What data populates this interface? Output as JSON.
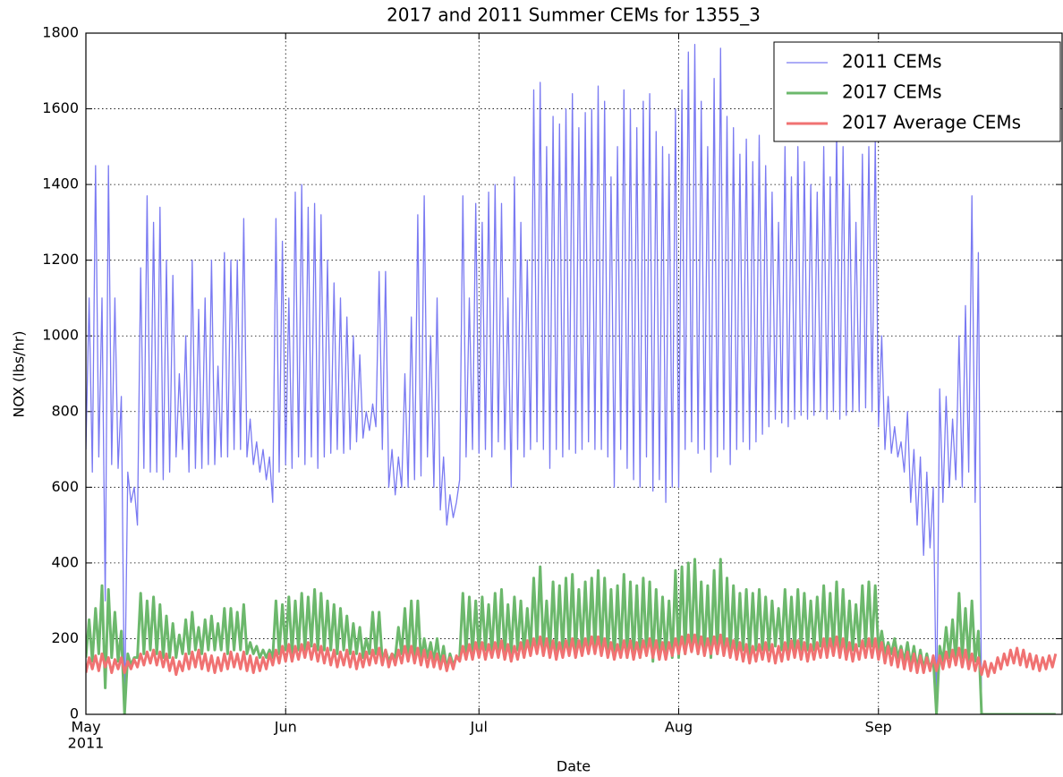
{
  "chart_data": {
    "type": "line",
    "title": "2017 and 2011 Summer CEMs for 1355_3",
    "xlabel": "Date",
    "ylabel": "NOX (lbs/hr)",
    "xtick_year": "2011",
    "xlim": [
      0,
      151.5
    ],
    "ylim": [
      0,
      1800
    ],
    "xticks": [
      {
        "value": 0,
        "label": "May"
      },
      {
        "value": 31,
        "label": "Jun"
      },
      {
        "value": 61,
        "label": "Jul"
      },
      {
        "value": 92,
        "label": "Aug"
      },
      {
        "value": 123,
        "label": "Sep"
      }
    ],
    "yticks": [
      0,
      200,
      400,
      600,
      800,
      1000,
      1200,
      1400,
      1600,
      1800
    ],
    "grid": true,
    "legend": "upper right",
    "x": [
      0,
      0.5,
      1,
      1.5,
      2,
      2.5,
      3,
      3.5,
      4,
      4.5,
      5,
      5.5,
      6,
      6.5,
      7,
      7.5,
      8,
      8.5,
      9,
      9.5,
      10,
      10.5,
      11,
      11.5,
      12,
      12.5,
      13,
      13.5,
      14,
      14.5,
      15,
      15.5,
      16,
      16.5,
      17,
      17.5,
      18,
      18.5,
      19,
      19.5,
      20,
      20.5,
      21,
      21.5,
      22,
      22.5,
      23,
      23.5,
      24,
      24.5,
      25,
      25.5,
      26,
      26.5,
      27,
      27.5,
      28,
      28.5,
      29,
      29.5,
      30,
      30.5,
      31,
      31.5,
      32,
      32.5,
      33,
      33.5,
      34,
      34.5,
      35,
      35.5,
      36,
      36.5,
      37,
      37.5,
      38,
      38.5,
      39,
      39.5,
      40,
      40.5,
      41,
      41.5,
      42,
      42.5,
      43,
      43.5,
      44,
      44.5,
      45,
      45.5,
      46,
      46.5,
      47,
      47.5,
      48,
      48.5,
      49,
      49.5,
      50,
      50.5,
      51,
      51.5,
      52,
      52.5,
      53,
      53.5,
      54,
      54.5,
      55,
      55.5,
      56,
      56.5,
      57,
      57.5,
      58,
      58.5,
      59,
      59.5,
      60,
      60.5,
      61,
      61.5,
      62,
      62.5,
      63,
      63.5,
      64,
      64.5,
      65,
      65.5,
      66,
      66.5,
      67,
      67.5,
      68,
      68.5,
      69,
      69.5,
      70,
      70.5,
      71,
      71.5,
      72,
      72.5,
      73,
      73.5,
      74,
      74.5,
      75,
      75.5,
      76,
      76.5,
      77,
      77.5,
      78,
      78.5,
      79,
      79.5,
      80,
      80.5,
      81,
      81.5,
      82,
      82.5,
      83,
      83.5,
      84,
      84.5,
      85,
      85.5,
      86,
      86.5,
      87,
      87.5,
      88,
      88.5,
      89,
      89.5,
      90,
      90.5,
      91,
      91.5,
      92,
      92.5,
      93,
      93.5,
      94,
      94.5,
      95,
      95.5,
      96,
      96.5,
      97,
      97.5,
      98,
      98.5,
      99,
      99.5,
      100,
      100.5,
      101,
      101.5,
      102,
      102.5,
      103,
      103.5,
      104,
      104.5,
      105,
      105.5,
      106,
      106.5,
      107,
      107.5,
      108,
      108.5,
      109,
      109.5,
      110,
      110.5,
      111,
      111.5,
      112,
      112.5,
      113,
      113.5,
      114,
      114.5,
      115,
      115.5,
      116,
      116.5,
      117,
      117.5,
      118,
      118.5,
      119,
      119.5,
      120,
      120.5,
      121,
      121.5,
      122,
      122.5,
      123,
      123.5,
      124,
      124.5,
      125,
      125.5,
      126,
      126.5,
      127,
      127.5,
      128,
      128.5,
      129,
      129.5,
      130,
      130.5,
      131,
      131.5,
      132,
      132.5,
      133,
      133.5,
      134,
      134.5,
      135,
      135.5,
      136,
      136.5,
      137,
      137.5,
      138,
      138.5,
      139,
      139.5,
      140,
      140.5,
      141,
      141.5,
      142,
      142.5,
      143,
      143.5,
      144,
      144.5,
      145,
      145.5,
      146,
      146.5,
      147,
      147.5,
      148,
      148.5,
      149,
      149.5,
      150,
      150.5
    ],
    "series": [
      {
        "name": "2011 CEMs",
        "color": "#7a7af2",
        "width": 1.3,
        "values": [
          700,
          1100,
          640,
          1450,
          680,
          1100,
          300,
          1450,
          660,
          1100,
          650,
          840,
          0,
          640,
          560,
          600,
          500,
          1180,
          650,
          1370,
          640,
          1300,
          640,
          1340,
          620,
          1200,
          640,
          1160,
          680,
          900,
          700,
          1000,
          640,
          1200,
          650,
          1070,
          650,
          1100,
          660,
          1200,
          660,
          920,
          680,
          1220,
          680,
          1200,
          700,
          1200,
          700,
          1310,
          680,
          780,
          660,
          720,
          640,
          700,
          620,
          680,
          560,
          1310,
          640,
          1250,
          660,
          1100,
          650,
          1380,
          680,
          1400,
          660,
          1340,
          680,
          1350,
          650,
          1320,
          680,
          1200,
          690,
          1140,
          700,
          1100,
          690,
          1050,
          700,
          1000,
          720,
          950,
          730,
          800,
          750,
          820,
          760,
          1170,
          700,
          1170,
          600,
          700,
          580,
          680,
          600,
          900,
          600,
          1050,
          620,
          1320,
          630,
          1370,
          680,
          1000,
          600,
          1100,
          540,
          680,
          500,
          580,
          520,
          560,
          620,
          1370,
          680,
          1100,
          700,
          1350,
          690,
          1300,
          700,
          1380,
          680,
          1400,
          720,
          1350,
          700,
          1100,
          600,
          1420,
          700,
          1300,
          680,
          1200,
          700,
          1650,
          720,
          1670,
          700,
          1500,
          650,
          1580,
          700,
          1560,
          680,
          1600,
          700,
          1640,
          690,
          1550,
          700,
          1590,
          720,
          1600,
          700,
          1660,
          700,
          1620,
          680,
          1420,
          600,
          1500,
          700,
          1650,
          650,
          1600,
          620,
          1550,
          600,
          1620,
          680,
          1640,
          590,
          1540,
          620,
          1500,
          560,
          1480,
          600,
          1600,
          600,
          1650,
          700,
          1750,
          720,
          1770,
          690,
          1620,
          700,
          1500,
          640,
          1680,
          680,
          1760,
          700,
          1580,
          660,
          1550,
          700,
          1480,
          720,
          1520,
          700,
          1460,
          720,
          1530,
          740,
          1450,
          760,
          1380,
          780,
          1300,
          770,
          1500,
          760,
          1420,
          780,
          1500,
          790,
          1460,
          780,
          1400,
          790,
          1380,
          800,
          1500,
          780,
          1420,
          800,
          1540,
          780,
          1500,
          790,
          1400,
          800,
          1300,
          800,
          1480,
          810,
          1500,
          800,
          1520,
          760,
          1000,
          700,
          840,
          690,
          760,
          680,
          720,
          640,
          800,
          560,
          700,
          500,
          680,
          420,
          640,
          440,
          600,
          0,
          860,
          560,
          840,
          600,
          780,
          620,
          1000,
          600,
          1080,
          640,
          1370,
          560,
          1220,
          0,
          0,
          0,
          0,
          0,
          0,
          0,
          0,
          0,
          0,
          0,
          0,
          0,
          0,
          0,
          0,
          0,
          0,
          0,
          0,
          0,
          0,
          0,
          0
        ]
      },
      {
        "name": "2017 CEMs",
        "color": "#6cb86c",
        "width": 3,
        "values": [
          150,
          250,
          140,
          280,
          160,
          340,
          70,
          330,
          150,
          270,
          140,
          220,
          0,
          160,
          130,
          150,
          150,
          320,
          160,
          300,
          170,
          310,
          160,
          290,
          150,
          260,
          150,
          240,
          150,
          210,
          160,
          250,
          160,
          270,
          170,
          230,
          160,
          250,
          170,
          260,
          170,
          240,
          170,
          280,
          160,
          280,
          170,
          270,
          170,
          290,
          160,
          190,
          160,
          180,
          150,
          170,
          150,
          170,
          150,
          300,
          160,
          290,
          170,
          310,
          160,
          300,
          170,
          320,
          170,
          310,
          180,
          330,
          170,
          320,
          170,
          300,
          170,
          290,
          160,
          280,
          170,
          260,
          160,
          240,
          160,
          230,
          150,
          200,
          160,
          270,
          160,
          270,
          140,
          170,
          140,
          160,
          150,
          230,
          160,
          280,
          150,
          300,
          140,
          300,
          140,
          200,
          150,
          190,
          140,
          200,
          130,
          180,
          120,
          160,
          130,
          150,
          150,
          320,
          160,
          310,
          160,
          300,
          160,
          310,
          170,
          290,
          160,
          320,
          170,
          330,
          160,
          290,
          160,
          310,
          170,
          300,
          160,
          280,
          170,
          360,
          180,
          390,
          170,
          300,
          160,
          350,
          170,
          340,
          160,
          360,
          170,
          370,
          160,
          330,
          170,
          350,
          170,
          360,
          170,
          380,
          160,
          360,
          160,
          330,
          150,
          340,
          160,
          370,
          150,
          350,
          150,
          340,
          150,
          360,
          160,
          350,
          140,
          330,
          150,
          310,
          150,
          300,
          150,
          380,
          150,
          390,
          160,
          400,
          170,
          410,
          160,
          350,
          160,
          340,
          150,
          380,
          160,
          410,
          160,
          360,
          160,
          340,
          160,
          320,
          170,
          330,
          160,
          320,
          170,
          330,
          170,
          310,
          170,
          300,
          180,
          280,
          170,
          330,
          170,
          310,
          170,
          330,
          170,
          320,
          170,
          300,
          170,
          310,
          180,
          340,
          170,
          320,
          170,
          350,
          170,
          330,
          170,
          300,
          170,
          290,
          180,
          340,
          180,
          350,
          180,
          340,
          170,
          220,
          160,
          190,
          160,
          200,
          150,
          180,
          140,
          190,
          130,
          180,
          120,
          170,
          120,
          160,
          120,
          150,
          0,
          180,
          140,
          230,
          150,
          250,
          140,
          320,
          150,
          280,
          140,
          300,
          140,
          220,
          0,
          0,
          0,
          0,
          0,
          0,
          0,
          0,
          0,
          0,
          0,
          0,
          0,
          0,
          0,
          0,
          0,
          0,
          0,
          0,
          0,
          0,
          0,
          0
        ]
      },
      {
        "name": "2017 Average CEMs",
        "color": "#f07272",
        "width": 3,
        "values": [
          110,
          150,
          120,
          155,
          115,
          160,
          125,
          150,
          110,
          145,
          120,
          150,
          110,
          140,
          120,
          145,
          125,
          160,
          130,
          165,
          135,
          170,
          130,
          165,
          125,
          160,
          115,
          150,
          105,
          140,
          115,
          160,
          120,
          165,
          125,
          170,
          120,
          160,
          115,
          155,
          110,
          150,
          115,
          160,
          120,
          165,
          125,
          160,
          120,
          165,
          115,
          155,
          110,
          150,
          115,
          150,
          120,
          160,
          130,
          170,
          135,
          180,
          140,
          185,
          140,
          180,
          145,
          185,
          150,
          190,
          145,
          185,
          140,
          180,
          135,
          175,
          130,
          170,
          125,
          165,
          130,
          170,
          125,
          165,
          120,
          160,
          125,
          165,
          130,
          170,
          135,
          175,
          130,
          170,
          125,
          160,
          130,
          170,
          135,
          180,
          140,
          180,
          135,
          175,
          130,
          170,
          125,
          165,
          125,
          160,
          120,
          155,
          115,
          150,
          120,
          155,
          140,
          180,
          145,
          185,
          145,
          190,
          150,
          190,
          145,
          185,
          150,
          190,
          150,
          195,
          145,
          185,
          140,
          180,
          145,
          190,
          150,
          195,
          155,
          200,
          160,
          205,
          155,
          200,
          150,
          195,
          145,
          190,
          150,
          195,
          155,
          200,
          150,
          195,
          155,
          200,
          160,
          205,
          160,
          205,
          155,
          200,
          150,
          190,
          145,
          185,
          150,
          195,
          150,
          195,
          145,
          190,
          150,
          195,
          155,
          200,
          150,
          195,
          145,
          190,
          145,
          190,
          155,
          200,
          160,
          205,
          160,
          210,
          165,
          210,
          160,
          205,
          155,
          200,
          160,
          205,
          160,
          210,
          155,
          200,
          150,
          195,
          145,
          190,
          140,
          185,
          135,
          180,
          140,
          185,
          145,
          190,
          140,
          185,
          135,
          180,
          140,
          190,
          145,
          195,
          150,
          195,
          145,
          190,
          140,
          185,
          145,
          190,
          150,
          200,
          150,
          200,
          155,
          205,
          150,
          200,
          145,
          190,
          140,
          185,
          145,
          195,
          150,
          200,
          150,
          200,
          145,
          190,
          135,
          180,
          130,
          175,
          125,
          170,
          120,
          165,
          115,
          160,
          110,
          155,
          110,
          150,
          115,
          155,
          115,
          155,
          120,
          165,
          125,
          170,
          130,
          175,
          125,
          170,
          120,
          160,
          115,
          150,
          105,
          140,
          100,
          135,
          110,
          150,
          120,
          160,
          130,
          170,
          135,
          175,
          130,
          170,
          125,
          160,
          120,
          155,
          115,
          150,
          120,
          155,
          125,
          160
        ]
      }
    ]
  }
}
